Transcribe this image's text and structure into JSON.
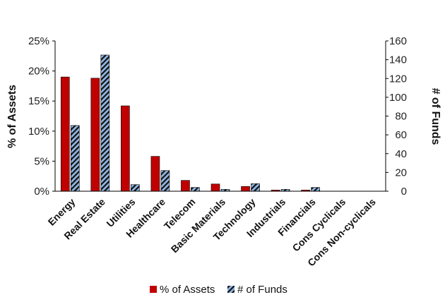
{
  "chart_data": {
    "type": "bar",
    "categories": [
      "Energy",
      "Real Estate",
      "Utilities",
      "Healthcare",
      "Telecom",
      "Basic Materials",
      "Technology",
      "Industrials",
      "Financials",
      "Cons Cyclicals",
      "Cons Non-cyclicals"
    ],
    "series": [
      {
        "name": "% of Assets",
        "axis": "left",
        "color": "#c00000",
        "values": [
          19.0,
          18.8,
          14.2,
          5.8,
          1.8,
          1.2,
          0.8,
          0.2,
          0.2,
          0.0,
          0.0
        ]
      },
      {
        "name": "# of Funds",
        "axis": "right",
        "color": "#8eb4e3",
        "pattern": "diagonal-stripe-black",
        "values": [
          70,
          145,
          7,
          22,
          4,
          2,
          8,
          2,
          4,
          0,
          0
        ]
      }
    ],
    "ylabel_left": "% of Assets",
    "ylabel_right": "# of Funds",
    "ylim_left": [
      0,
      25
    ],
    "ylim_right": [
      0,
      160
    ],
    "yticks_left": [
      "0%",
      "5%",
      "10%",
      "15%",
      "20%",
      "25%"
    ],
    "yticks_right": [
      "0",
      "20",
      "40",
      "60",
      "80",
      "100",
      "120",
      "140",
      "160"
    ],
    "grid": false,
    "legend_position": "bottom"
  }
}
